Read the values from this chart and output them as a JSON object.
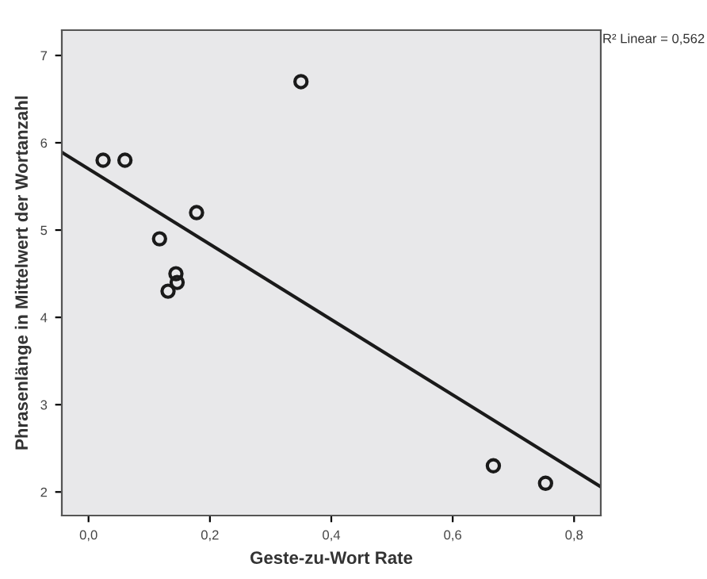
{
  "chart_data": {
    "type": "scatter",
    "xlabel": "Geste-zu-Wort Rate",
    "ylabel": "Phrasenlänge in Mittelwert der Wortanzahl",
    "annotations": [
      "R² Linear = 0,562"
    ],
    "grid": false,
    "legend": false,
    "series": [
      {
        "marker": "circle",
        "color": "#1a1a1a",
        "x": [
          0.024,
          0.06,
          0.35,
          0.178,
          0.117,
          0.144,
          0.146,
          0.131,
          0.667,
          0.753
        ],
        "values": [
          5.8,
          5.8,
          6.7,
          5.2,
          4.9,
          4.5,
          4.4,
          4.3,
          2.3,
          2.1
        ]
      },
      {
        "type": "line",
        "color": "#1a1a1a",
        "x": [
          -0.044,
          0.844
        ],
        "values": [
          5.89,
          2.06
        ]
      }
    ],
    "xlim": [
      -0.044,
      0.844
    ],
    "ylim": [
      1.73,
      7.29
    ],
    "xticks": [
      {
        "value": 0.0,
        "label": "0,0"
      },
      {
        "value": 0.2,
        "label": "0,2"
      },
      {
        "value": 0.4,
        "label": "0,4"
      },
      {
        "value": 0.6,
        "label": "0,6"
      },
      {
        "value": 0.8,
        "label": "0,8"
      }
    ],
    "yticks": [
      2,
      3,
      4,
      5,
      6,
      7
    ]
  }
}
